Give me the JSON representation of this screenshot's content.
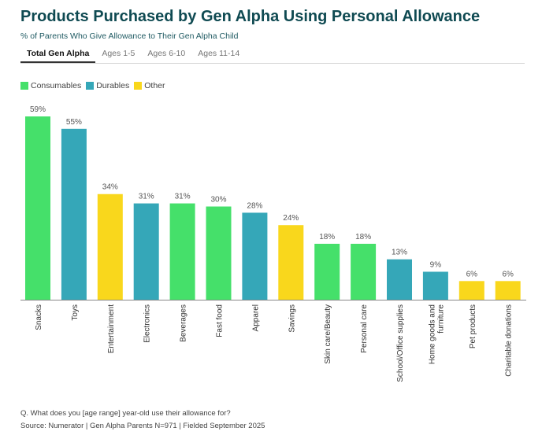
{
  "title": "Products Purchased by Gen Alpha Using Personal Allowance",
  "subtitle": "% of Parents Who Give Allowance to Their Gen Alpha Child",
  "tabs": [
    {
      "label": "Total Gen Alpha",
      "active": true
    },
    {
      "label": "Ages 1-5"
    },
    {
      "label": "Ages 6-10"
    },
    {
      "label": "Ages 11-14"
    }
  ],
  "legend": [
    {
      "label": "Consumables",
      "color": "#45E06A"
    },
    {
      "label": "Durables",
      "color": "#35A7B8"
    },
    {
      "label": "Other",
      "color": "#F9D71C"
    }
  ],
  "footer": {
    "question": "Q. What does you [age range] year-old use their allowance for?",
    "source": "Source: Numerator | Gen Alpha Parents N=971 | Fielded September 2025"
  },
  "chart_data": {
    "type": "bar",
    "ylim": [
      0,
      60
    ],
    "grid": false,
    "legend_position": "top-left",
    "value_suffix": "%",
    "categories": [
      "Snacks",
      "Toys",
      "Entertainment",
      "Electronics",
      "Beverages",
      "Fast food",
      "Apparel",
      "Savings",
      "Skin care/Beauty",
      "Personal care",
      "School/Office supplies",
      "Home goods and furniture",
      "Pet products",
      "Charitable donations"
    ],
    "values": [
      59,
      55,
      34,
      31,
      31,
      30,
      28,
      24,
      18,
      18,
      13,
      9,
      6,
      6
    ],
    "groups": [
      "Consumables",
      "Durables",
      "Other",
      "Durables",
      "Consumables",
      "Consumables",
      "Durables",
      "Other",
      "Consumables",
      "Consumables",
      "Durables",
      "Durables",
      "Other",
      "Other"
    ]
  }
}
